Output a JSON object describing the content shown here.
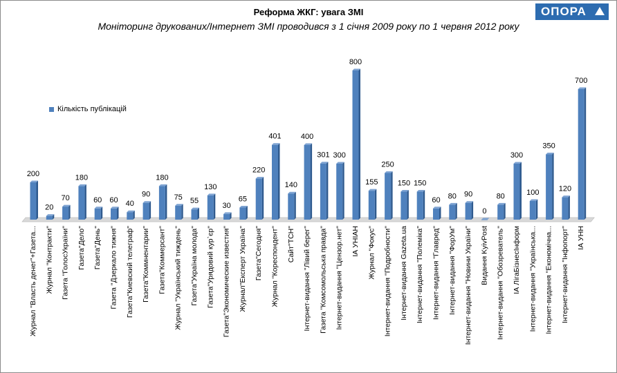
{
  "logo": {
    "text": "ОПОРА"
  },
  "chart_data": {
    "type": "bar",
    "title": "Реформа ЖКГ: увага ЗМІ",
    "subtitle": "Моніторинг  друкованих/Інтернет  ЗМІ проводився з 1 січня 2009 року  по 1 червня 2012 року",
    "legend_position": "left",
    "grid": false,
    "ylim": [
      0,
      800
    ],
    "colors": {
      "bar": "#4f81bd",
      "bar_dark": "#2f5a8e",
      "floor": "#d9d9d9"
    },
    "series": [
      {
        "name": "Кількість публікацій",
        "values": [
          200,
          20,
          70,
          180,
          60,
          60,
          40,
          90,
          180,
          75,
          55,
          130,
          30,
          65,
          220,
          401,
          140,
          400,
          301,
          300,
          800,
          155,
          250,
          150,
          150,
          60,
          80,
          90,
          0,
          80,
          300,
          100,
          350,
          120,
          700
        ]
      }
    ],
    "categories": [
      "Журнал \"Власть денег\"+Газета...",
      "Журнал \"Контракти\"",
      "Газета \"ГолосУкраїни\"",
      "Газета\"Дело\"",
      "Газета\"День\"",
      "Газета \"Дзеркало тижня\"",
      "Газета\"Киевский телеграф\"",
      "Газета\"Коммнентарии\"",
      "Газета\"Коммерсант\"",
      "Журнал \"Український тиждень\"",
      "Газета\"Україна молода\"",
      "Газета\"Урядовий кур`єр\"",
      "Газета\"Экономические известия\"",
      "Журнал\"Експерт Україна\"",
      "Газета\"Сегодня\"",
      "Журнал \"Кореспондент\"",
      "Сайт\"ТСН\"",
      "Інтернет-видання \"Лівий берег\"",
      "Газета \"Комсомольська правда\"",
      "Інтернет-видання \"Цензор.нет\"",
      "ІА УНІАН",
      "Журнал \"Фокус\"",
      "Інтернет-видання \"Подробности\"",
      "Інтернет-видання Gazeta.ua",
      "Інтернет-видання \"Полеміка\"",
      "Інтернет-видання \"Главред\"",
      "Інтернет-видання \"ФорУм\"",
      "Інтернет-видання \"Новини України\"",
      "Видання KyivPost",
      "Інтернет-видання \"Обозреватель\"",
      "ІА ЛігаБізнесІнформ",
      "Інтернет-видання \"Українська...",
      "Інтернет-видання \"Економічна...",
      "Інтернет-видання \"Інфопорт\"",
      "ІА УНН"
    ]
  }
}
